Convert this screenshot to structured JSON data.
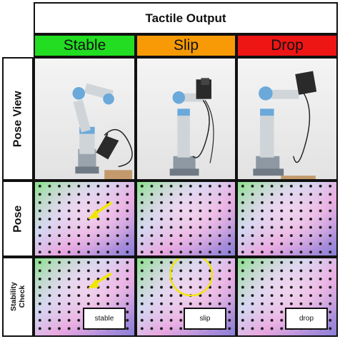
{
  "header": {
    "title": "Tactile Output"
  },
  "columns": [
    {
      "label": "Stable",
      "color": "#22dd22"
    },
    {
      "label": "Slip",
      "color": "#f79a05"
    },
    {
      "label": "Drop",
      "color": "#ee1515"
    }
  ],
  "rows": [
    {
      "label": "Pose View"
    },
    {
      "label": "Pose"
    },
    {
      "label": "Stability Check"
    }
  ],
  "stability_labels": [
    "stable",
    "slip",
    "drop"
  ],
  "annotation_colors": {
    "arrow": "#f2e600",
    "circle": "#f2e600"
  }
}
